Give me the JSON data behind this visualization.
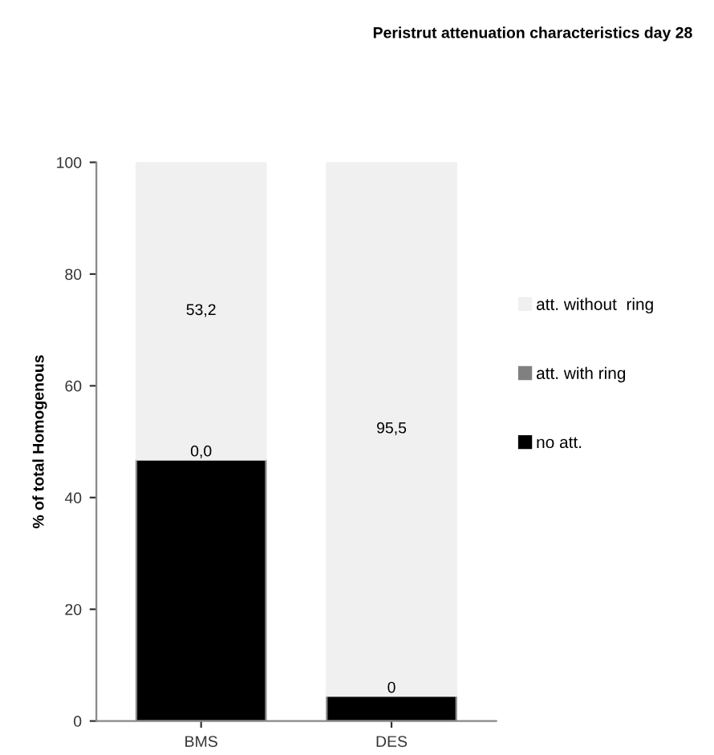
{
  "chart_data": {
    "type": "bar",
    "title": "Peristrut attenuation characteristics day 28",
    "ylabel": "% of total Homogenous",
    "categories": [
      "BMS",
      "DES"
    ],
    "stacked": true,
    "ylim": [
      0,
      100
    ],
    "yticks": [
      0,
      20,
      40,
      60,
      80,
      100
    ],
    "grid": false,
    "legend": "right",
    "series": [
      {
        "name": "no att.",
        "color": "#000000",
        "values": [
          46.8,
          4.5
        ],
        "value_labels": [
          null,
          null
        ]
      },
      {
        "name": "att. with ring",
        "color": "#808080",
        "values": [
          0,
          0
        ],
        "value_labels": [
          "0,0",
          "0"
        ]
      },
      {
        "name": "att. without  ring",
        "color": "#f0f0f0",
        "values": [
          53.2,
          95.5
        ],
        "value_labels": [
          "53,2",
          "95,5"
        ]
      }
    ]
  }
}
